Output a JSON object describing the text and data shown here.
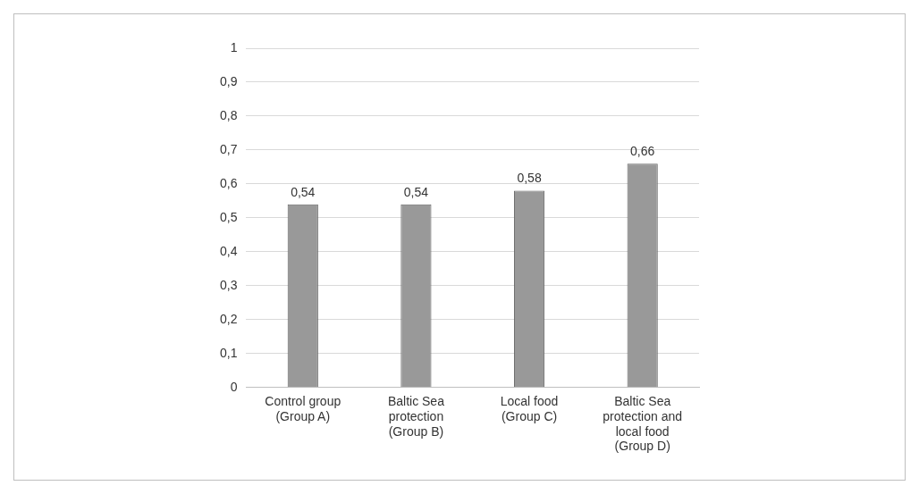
{
  "chart_data": {
    "type": "bar",
    "categories": [
      "Control group (Group A)",
      "Baltic Sea protection (Group B)",
      "Local food (Group C)",
      "Baltic Sea protection and local food (Group D)"
    ],
    "values": [
      0.54,
      0.54,
      0.58,
      0.66
    ],
    "color": "#999999",
    "value_labels": [
      "0,54",
      "0,54",
      "0,58",
      "0,66"
    ],
    "ylim": [
      0,
      1
    ],
    "yticks": [
      {
        "value": 0,
        "label": "0"
      },
      {
        "value": 0.1,
        "label": "0,1"
      },
      {
        "value": 0.2,
        "label": "0,2"
      },
      {
        "value": 0.3,
        "label": "0,3"
      },
      {
        "value": 0.4,
        "label": "0,4"
      },
      {
        "value": 0.5,
        "label": "0,5"
      },
      {
        "value": 0.6,
        "label": "0,6"
      },
      {
        "value": 0.7,
        "label": "0,7"
      },
      {
        "value": 0.8,
        "label": "0,8"
      },
      {
        "value": 0.9,
        "label": "0,9"
      },
      {
        "value": 1,
        "label": "1"
      }
    ],
    "grid": "y",
    "legend": false
  }
}
